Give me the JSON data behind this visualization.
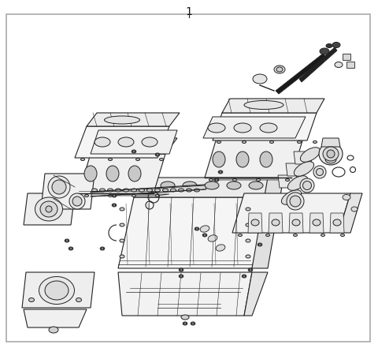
{
  "title": "1",
  "background_color": "#ffffff",
  "border_color": "#aaaaaa",
  "border_linewidth": 1.2,
  "title_fontsize": 10,
  "title_color": "#111111",
  "fig_width": 4.8,
  "fig_height": 4.41,
  "dpi": 100,
  "line_color": "#222222",
  "light_fill": "#f8f8f8",
  "medium_fill": "#eeeeee",
  "dark_fill": "#d8d8d8"
}
